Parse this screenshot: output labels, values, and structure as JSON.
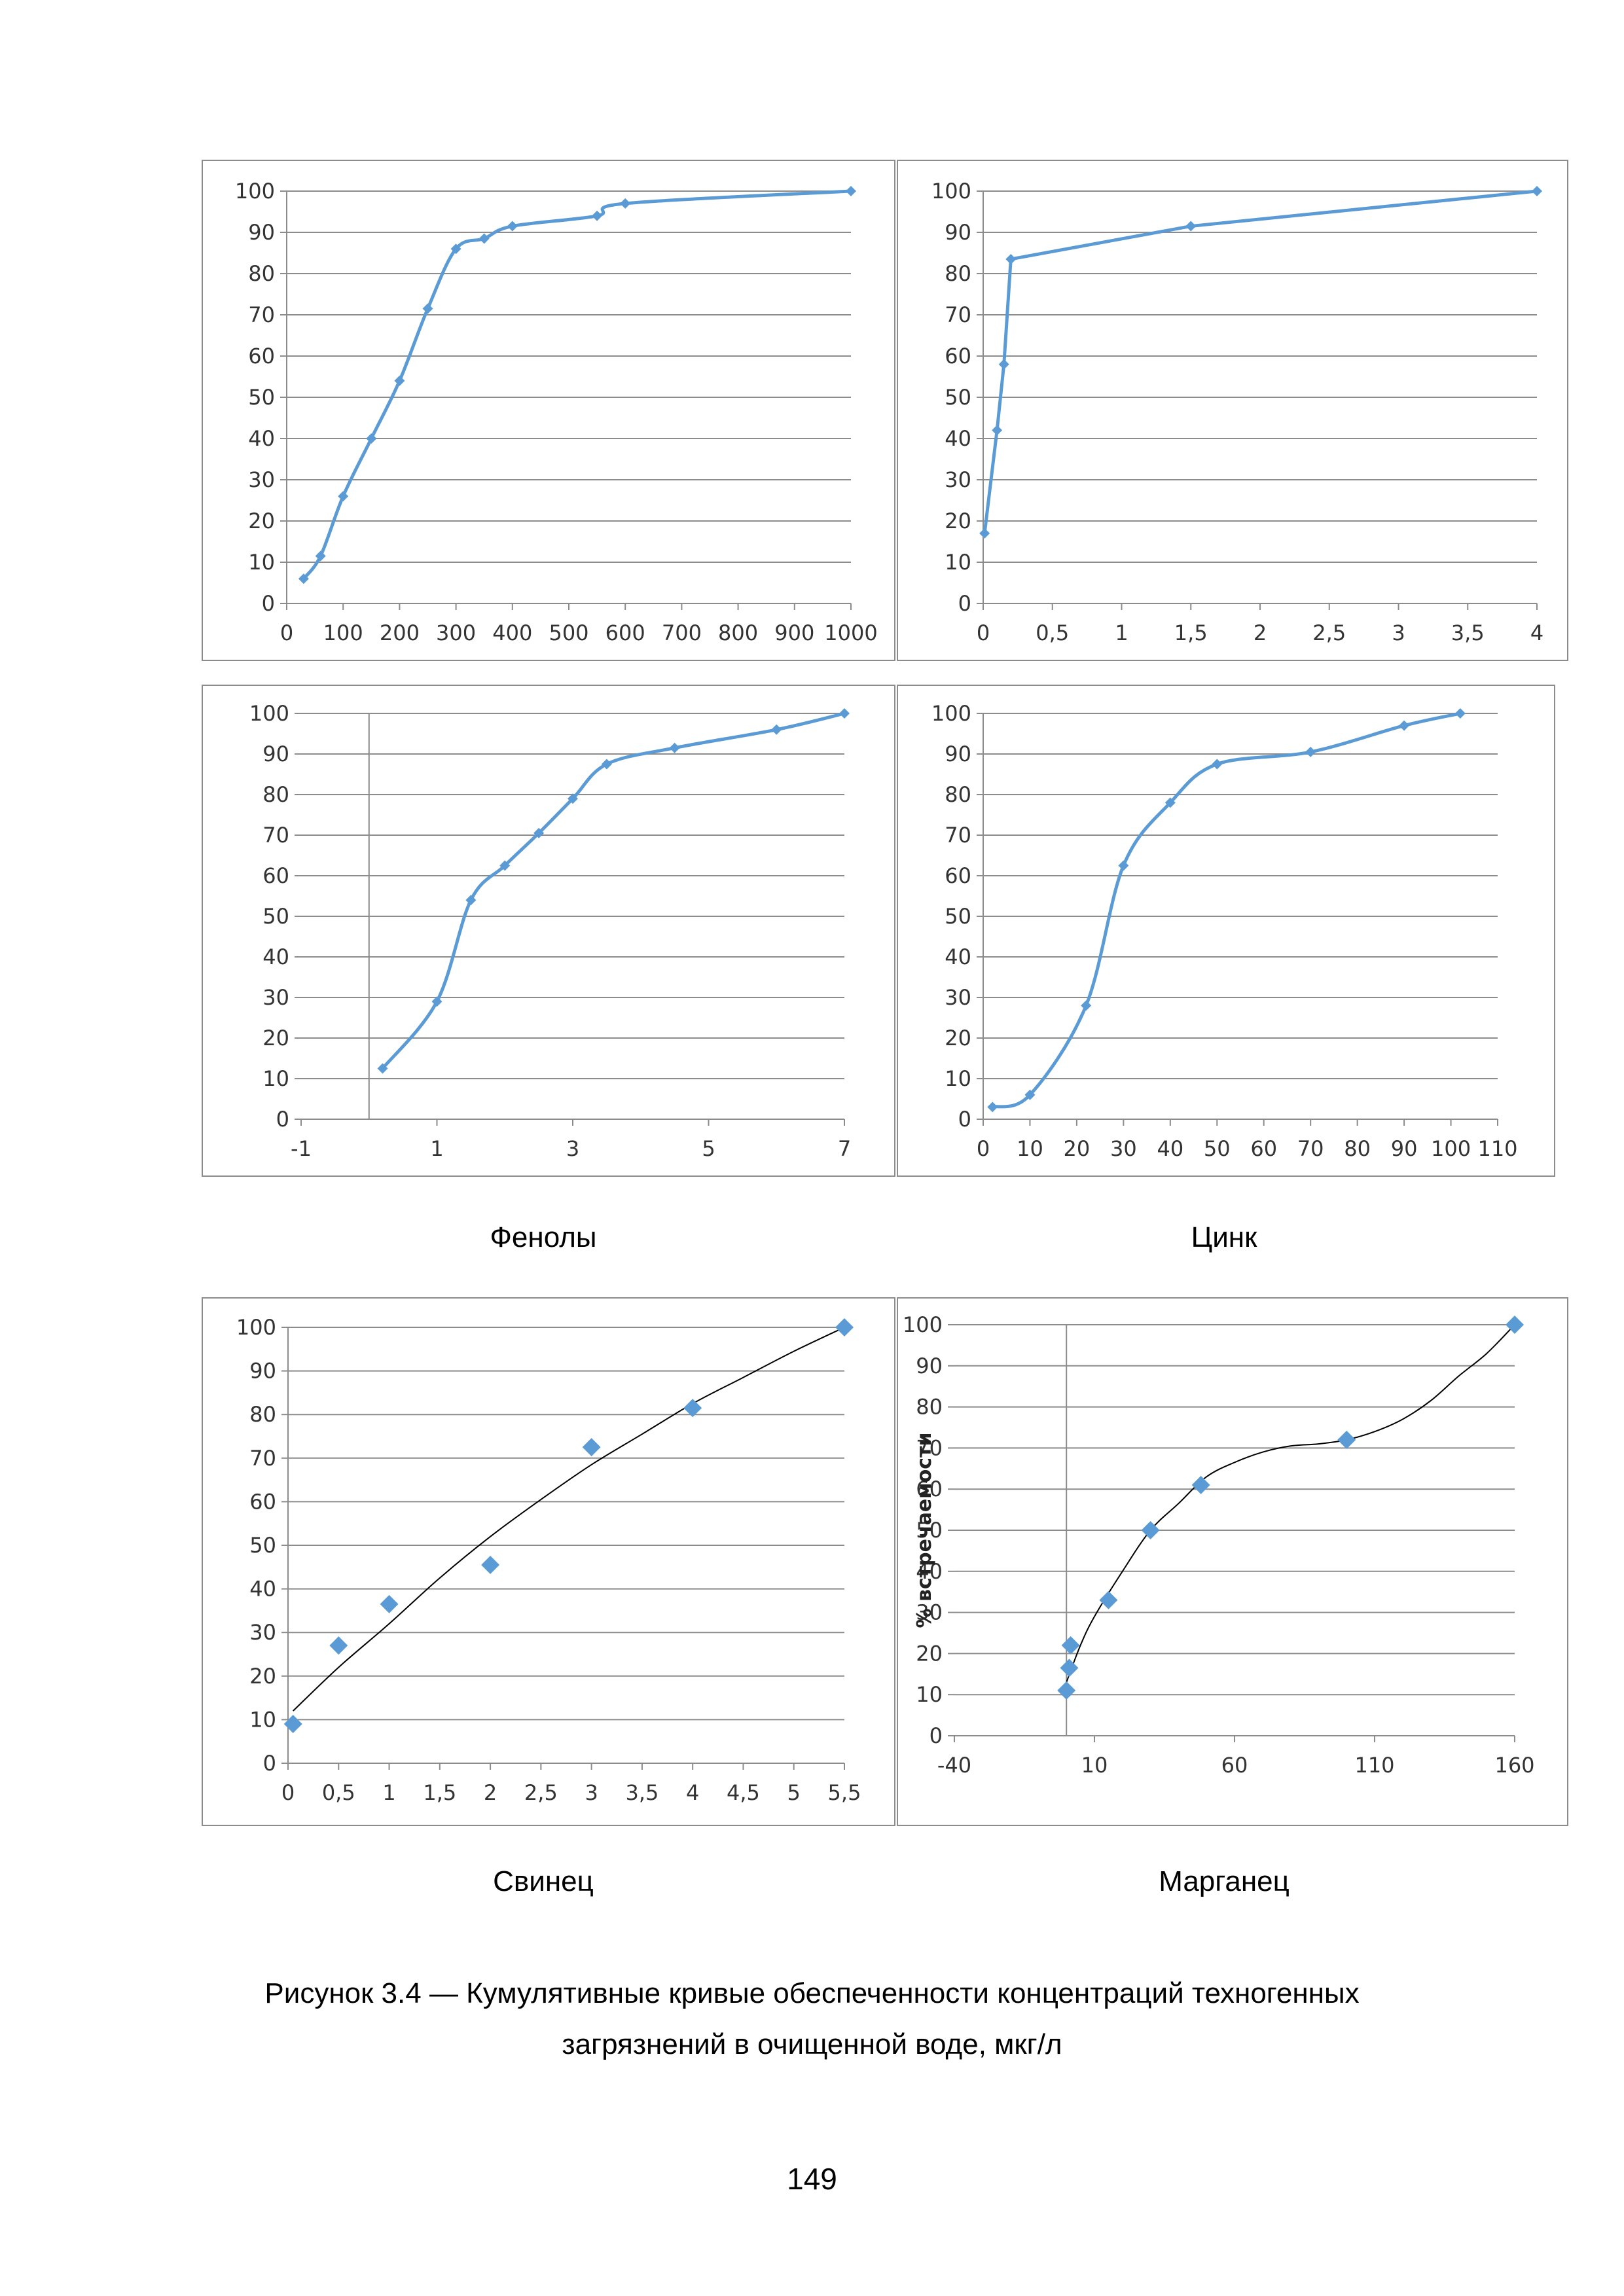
{
  "colors": {
    "series": "#5b9bd5",
    "trend": "#000000",
    "grid": "#8c8c8c",
    "axis": "#8c8c8c",
    "border": "#8c8c8c"
  },
  "captions": {
    "fenoly": "Фенолы",
    "tsink": "Цинк",
    "svinets": "Свинец",
    "marganets": "Марганец"
  },
  "figure_caption": {
    "line1": "Рисунок 3.4 — Кумулятивные кривые обеспеченности концентраций техногенных",
    "line2": "загрязнений в очищенной воде, мкг/л"
  },
  "page_number": "149",
  "chart_data": [
    {
      "type": "line",
      "smooth": true,
      "marker": "small-diamond",
      "grid": "horizontal",
      "legend": "none",
      "xlim": [
        0,
        1000
      ],
      "ylim": [
        0,
        100
      ],
      "xticks": [
        "0",
        "100",
        "200",
        "300",
        "400",
        "500",
        "600",
        "700",
        "800",
        "900",
        "1000"
      ],
      "yticks": [
        "0",
        "10",
        "20",
        "30",
        "40",
        "50",
        "60",
        "70",
        "80",
        "90",
        "100"
      ],
      "x": [
        30,
        60,
        100,
        150,
        200,
        250,
        300,
        350,
        400,
        550,
        600,
        1000
      ],
      "y": [
        6,
        11.5,
        26,
        40,
        54,
        71.5,
        86,
        88.5,
        91.5,
        94,
        97,
        100
      ]
    },
    {
      "type": "line",
      "smooth": false,
      "marker": "small-diamond",
      "grid": "horizontal",
      "legend": "none",
      "xlim": [
        0,
        4
      ],
      "ylim": [
        0,
        100
      ],
      "xticks": [
        "0",
        "0,5",
        "1",
        "1,5",
        "2",
        "2,5",
        "3",
        "3,5",
        "4"
      ],
      "yticks": [
        "0",
        "10",
        "20",
        "30",
        "40",
        "50",
        "60",
        "70",
        "80",
        "90",
        "100"
      ],
      "x": [
        0.01,
        0.1,
        0.15,
        0.2,
        1.5,
        4
      ],
      "y": [
        17,
        42,
        58,
        83.5,
        91.5,
        100
      ]
    },
    {
      "type": "line",
      "smooth": true,
      "marker": "small-diamond",
      "grid": "horizontal",
      "legend": "none",
      "xlim": [
        -1,
        7
      ],
      "ylim": [
        0,
        100
      ],
      "xticks": [
        "-1",
        "1",
        "3",
        "5",
        "7"
      ],
      "yticks": [
        "0",
        "10",
        "20",
        "30",
        "40",
        "50",
        "60",
        "70",
        "80",
        "90",
        "100"
      ],
      "x": [
        0.2,
        1,
        1.5,
        2,
        2.5,
        3,
        3.5,
        4.5,
        6,
        7
      ],
      "y": [
        12.5,
        29,
        54,
        62.5,
        70.5,
        79,
        87.5,
        91.5,
        96,
        100
      ]
    },
    {
      "type": "line",
      "smooth": true,
      "marker": "small-diamond",
      "grid": "horizontal",
      "legend": "none",
      "xlim": [
        0,
        110
      ],
      "ylim": [
        0,
        100
      ],
      "xticks": [
        "0",
        "10",
        "20",
        "30",
        "40",
        "50",
        "60",
        "70",
        "80",
        "90",
        "100",
        "110"
      ],
      "yticks": [
        "0",
        "10",
        "20",
        "30",
        "40",
        "50",
        "60",
        "70",
        "80",
        "90",
        "100"
      ],
      "x": [
        2,
        10,
        22,
        30,
        40,
        50,
        70,
        90,
        102
      ],
      "y": [
        3,
        6,
        28,
        62.5,
        78,
        87.5,
        90.5,
        97,
        100
      ]
    },
    {
      "type": "scatter",
      "trendline": "power",
      "marker": "large-diamond",
      "grid": "horizontal",
      "legend": "none",
      "xlim": [
        0,
        5.5
      ],
      "ylim": [
        0,
        100
      ],
      "xticks": [
        "0",
        "0,5",
        "1",
        "1,5",
        "2",
        "2,5",
        "3",
        "3,5",
        "4",
        "4,5",
        "5",
        "5,5"
      ],
      "yticks": [
        "0",
        "10",
        "20",
        "30",
        "40",
        "50",
        "60",
        "70",
        "80",
        "90",
        "100"
      ],
      "x": [
        0.05,
        0.5,
        1,
        2,
        3,
        4,
        5.5
      ],
      "y": [
        9,
        27,
        36.5,
        45.5,
        72.5,
        81.5,
        100
      ],
      "trend_x": [
        0.05,
        0.5,
        1,
        1.5,
        2,
        2.5,
        3,
        3.5,
        4,
        4.5,
        5,
        5.5
      ],
      "trend_y": [
        12,
        22,
        32,
        42.5,
        52,
        60.5,
        68.5,
        75.5,
        82.5,
        88.5,
        94.5,
        100
      ]
    },
    {
      "type": "scatter",
      "trendline": "polynomial",
      "marker": "large-diamond",
      "grid": "horizontal",
      "legend": "none",
      "xlim": [
        -40,
        160
      ],
      "ylim": [
        0,
        100
      ],
      "xticks": [
        "-40",
        "10",
        "60",
        "110",
        "160"
      ],
      "xtick_values": [
        -40,
        10,
        60,
        110,
        160
      ],
      "yticks": [
        "0",
        "10",
        "20",
        "30",
        "40",
        "50",
        "60",
        "70",
        "80",
        "90",
        "100"
      ],
      "ylabel": "% встречаемости",
      "x": [
        0,
        1,
        1.5,
        15,
        30,
        48,
        100,
        160
      ],
      "y": [
        11,
        16.5,
        22,
        33,
        50,
        61,
        72,
        100
      ],
      "trend_x": [
        0,
        5,
        10,
        20,
        30,
        40,
        50,
        60,
        70,
        80,
        90,
        100,
        110,
        120,
        130,
        140,
        150,
        160
      ],
      "trend_y": [
        13,
        22,
        29,
        40,
        50,
        56.5,
        63,
        66.5,
        69,
        70.5,
        71,
        72,
        74,
        77,
        81.5,
        87.5,
        93,
        100
      ]
    }
  ]
}
